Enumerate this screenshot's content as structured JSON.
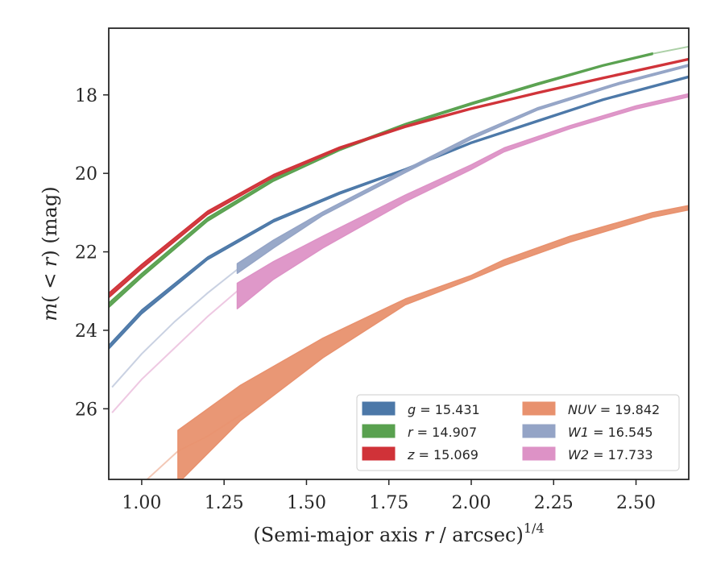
{
  "chart_data": {
    "type": "area",
    "xlabel": "(Semi-major axis r / arcsec)^1/4",
    "xlabel_parts": {
      "prefix": "(Semi-major axis ",
      "var": "r",
      "mid": " / arcsec)",
      "sup": "1/4"
    },
    "ylabel": "m(< r) (mag)",
    "ylabel_parts": {
      "m": "m",
      "open": "(",
      "lt": " < ",
      "r": "r",
      "close": ")",
      "unit": " (mag)"
    },
    "xlim": [
      0.9,
      2.66
    ],
    "ylim": [
      27.8,
      16.3
    ],
    "y_inverted": true,
    "xticks": [
      1.0,
      1.25,
      1.5,
      1.75,
      2.0,
      2.25,
      2.5
    ],
    "xtick_labels": [
      "1.00",
      "1.25",
      "1.50",
      "1.75",
      "2.00",
      "2.25",
      "2.50"
    ],
    "yticks": [
      18,
      20,
      22,
      24,
      26
    ],
    "ytick_labels": [
      "18",
      "20",
      "22",
      "24",
      "26"
    ],
    "grid": false,
    "legend_position": "lower-right",
    "legend_columns": 2,
    "series": [
      {
        "name": "g = 15.431",
        "band": "g",
        "total_mag": "15.431",
        "color": "#4C78A8",
        "faint_x": [],
        "faint_y": [],
        "x": [
          0.9,
          1.0,
          1.2,
          1.4,
          1.6,
          1.8,
          2.0,
          2.2,
          2.4,
          2.66
        ],
        "y_low": [
          24.38,
          23.48,
          22.13,
          21.18,
          20.48,
          19.88,
          19.2,
          18.65,
          18.1,
          17.52
        ],
        "y_high": [
          24.48,
          23.58,
          22.2,
          21.24,
          20.53,
          19.92,
          19.24,
          18.69,
          18.14,
          17.56
        ]
      },
      {
        "name": "r = 14.907",
        "band": "r",
        "total_mag": "14.907",
        "color": "#59A14F",
        "faint_x": [
          2.55,
          2.66
        ],
        "faint_y": [
          16.95,
          16.77
        ],
        "x": [
          0.9,
          1.0,
          1.2,
          1.4,
          1.6,
          1.8,
          2.0,
          2.2,
          2.4,
          2.55
        ],
        "y_low": [
          23.3,
          22.55,
          21.13,
          20.13,
          19.36,
          18.73,
          18.2,
          17.7,
          17.23,
          16.93
        ],
        "y_high": [
          23.42,
          22.65,
          21.22,
          20.2,
          19.42,
          18.78,
          18.25,
          17.75,
          17.27,
          16.97
        ]
      },
      {
        "name": "z = 15.069",
        "band": "z",
        "total_mag": "15.069",
        "color": "#D03238",
        "faint_x": [],
        "faint_y": [],
        "x": [
          0.9,
          1.0,
          1.2,
          1.4,
          1.6,
          1.8,
          2.0,
          2.2,
          2.4,
          2.66
        ],
        "y_low": [
          23.05,
          22.32,
          20.96,
          20.03,
          19.33,
          18.78,
          18.33,
          17.93,
          17.55,
          17.07
        ],
        "y_high": [
          23.17,
          22.43,
          21.05,
          20.1,
          19.38,
          18.83,
          18.37,
          17.97,
          17.59,
          17.11
        ]
      },
      {
        "name": "NUV = 19.842",
        "band": "NUV",
        "total_mag": "19.842",
        "color": "#E8916E",
        "faint_x": [
          1.01,
          1.11,
          1.2,
          1.32
        ],
        "faint_y": [
          27.85,
          27.08,
          26.7,
          26.05
        ],
        "x": [
          1.11,
          1.3,
          1.55,
          1.8,
          2.0,
          2.1,
          2.3,
          2.55,
          2.66
        ],
        "y_low": [
          26.55,
          25.4,
          24.2,
          23.2,
          22.6,
          22.2,
          21.6,
          21.0,
          20.82
        ],
        "y_high": [
          27.9,
          26.3,
          24.7,
          23.35,
          22.7,
          22.35,
          21.75,
          21.12,
          20.93
        ]
      },
      {
        "name": "W1 = 16.545",
        "band": "W1",
        "total_mag": "16.545",
        "color": "#94A4C6",
        "faint_x": [
          0.91,
          1.0,
          1.1,
          1.2,
          1.29
        ],
        "faint_y": [
          25.45,
          24.6,
          23.78,
          23.05,
          22.45
        ],
        "x": [
          1.29,
          1.4,
          1.55,
          1.8,
          2.0,
          2.2,
          2.45,
          2.66
        ],
        "y_low": [
          22.3,
          21.7,
          20.98,
          19.9,
          19.05,
          18.33,
          17.68,
          17.22
        ],
        "y_high": [
          22.55,
          21.9,
          21.07,
          19.98,
          19.13,
          18.39,
          17.73,
          17.27
        ]
      },
      {
        "name": "W2 = 17.733",
        "band": "W2",
        "total_mag": "17.733",
        "color": "#DD92C6",
        "faint_x": [
          0.91,
          1.0,
          1.1,
          1.2,
          1.29
        ],
        "faint_y": [
          26.1,
          25.25,
          24.45,
          23.65,
          23.0
        ],
        "x": [
          1.29,
          1.4,
          1.55,
          1.8,
          2.0,
          2.1,
          2.3,
          2.5,
          2.66
        ],
        "y_low": [
          22.8,
          22.25,
          21.6,
          20.55,
          19.78,
          19.35,
          18.78,
          18.28,
          17.97
        ],
        "y_high": [
          23.45,
          22.7,
          21.9,
          20.72,
          19.9,
          19.45,
          18.86,
          18.36,
          18.05
        ]
      }
    ]
  }
}
